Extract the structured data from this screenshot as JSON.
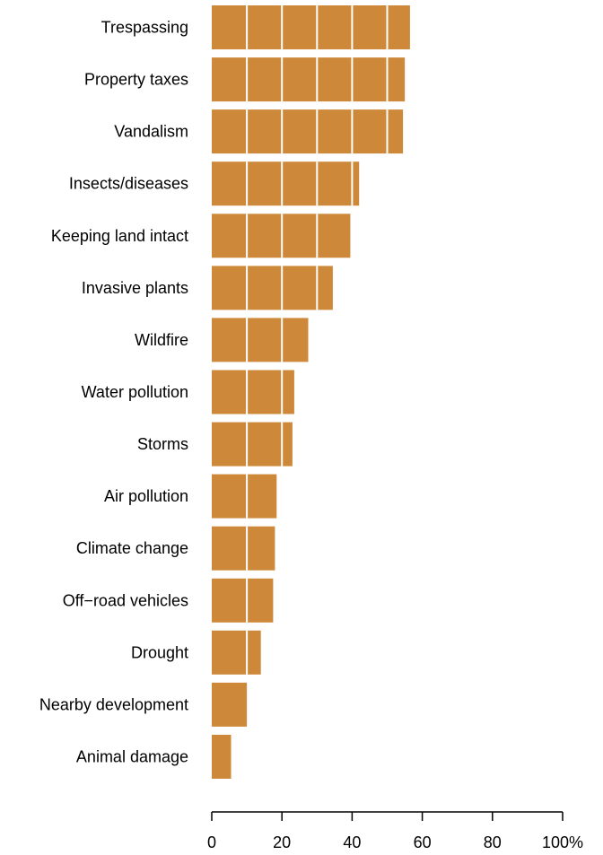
{
  "chart_data": {
    "type": "bar",
    "orientation": "horizontal",
    "categories": [
      "Trespassing",
      "Property taxes",
      "Vandalism",
      "Insects/diseases",
      "Keeping land intact",
      "Invasive plants",
      "Wildfire",
      "Water pollution",
      "Storms",
      "Air pollution",
      "Climate change",
      "Off−road vehicles",
      "Drought",
      "Nearby development",
      "Animal damage"
    ],
    "values": [
      56.5,
      55,
      54.5,
      42,
      39.5,
      34.5,
      27.5,
      23.5,
      23,
      18.5,
      18,
      17.5,
      14,
      10,
      5.5
    ],
    "xlim": [
      0,
      100
    ],
    "xticks": [
      0,
      20,
      40,
      60,
      80,
      100
    ],
    "xtick_labels": [
      "0",
      "20",
      "40",
      "60",
      "80",
      "100%"
    ],
    "bar_color": "#cd883a",
    "gridlines_over_bars": [
      10,
      20,
      30,
      40,
      50
    ],
    "gridline_color": "#ffffff",
    "title": "",
    "xlabel": "",
    "ylabel": ""
  }
}
